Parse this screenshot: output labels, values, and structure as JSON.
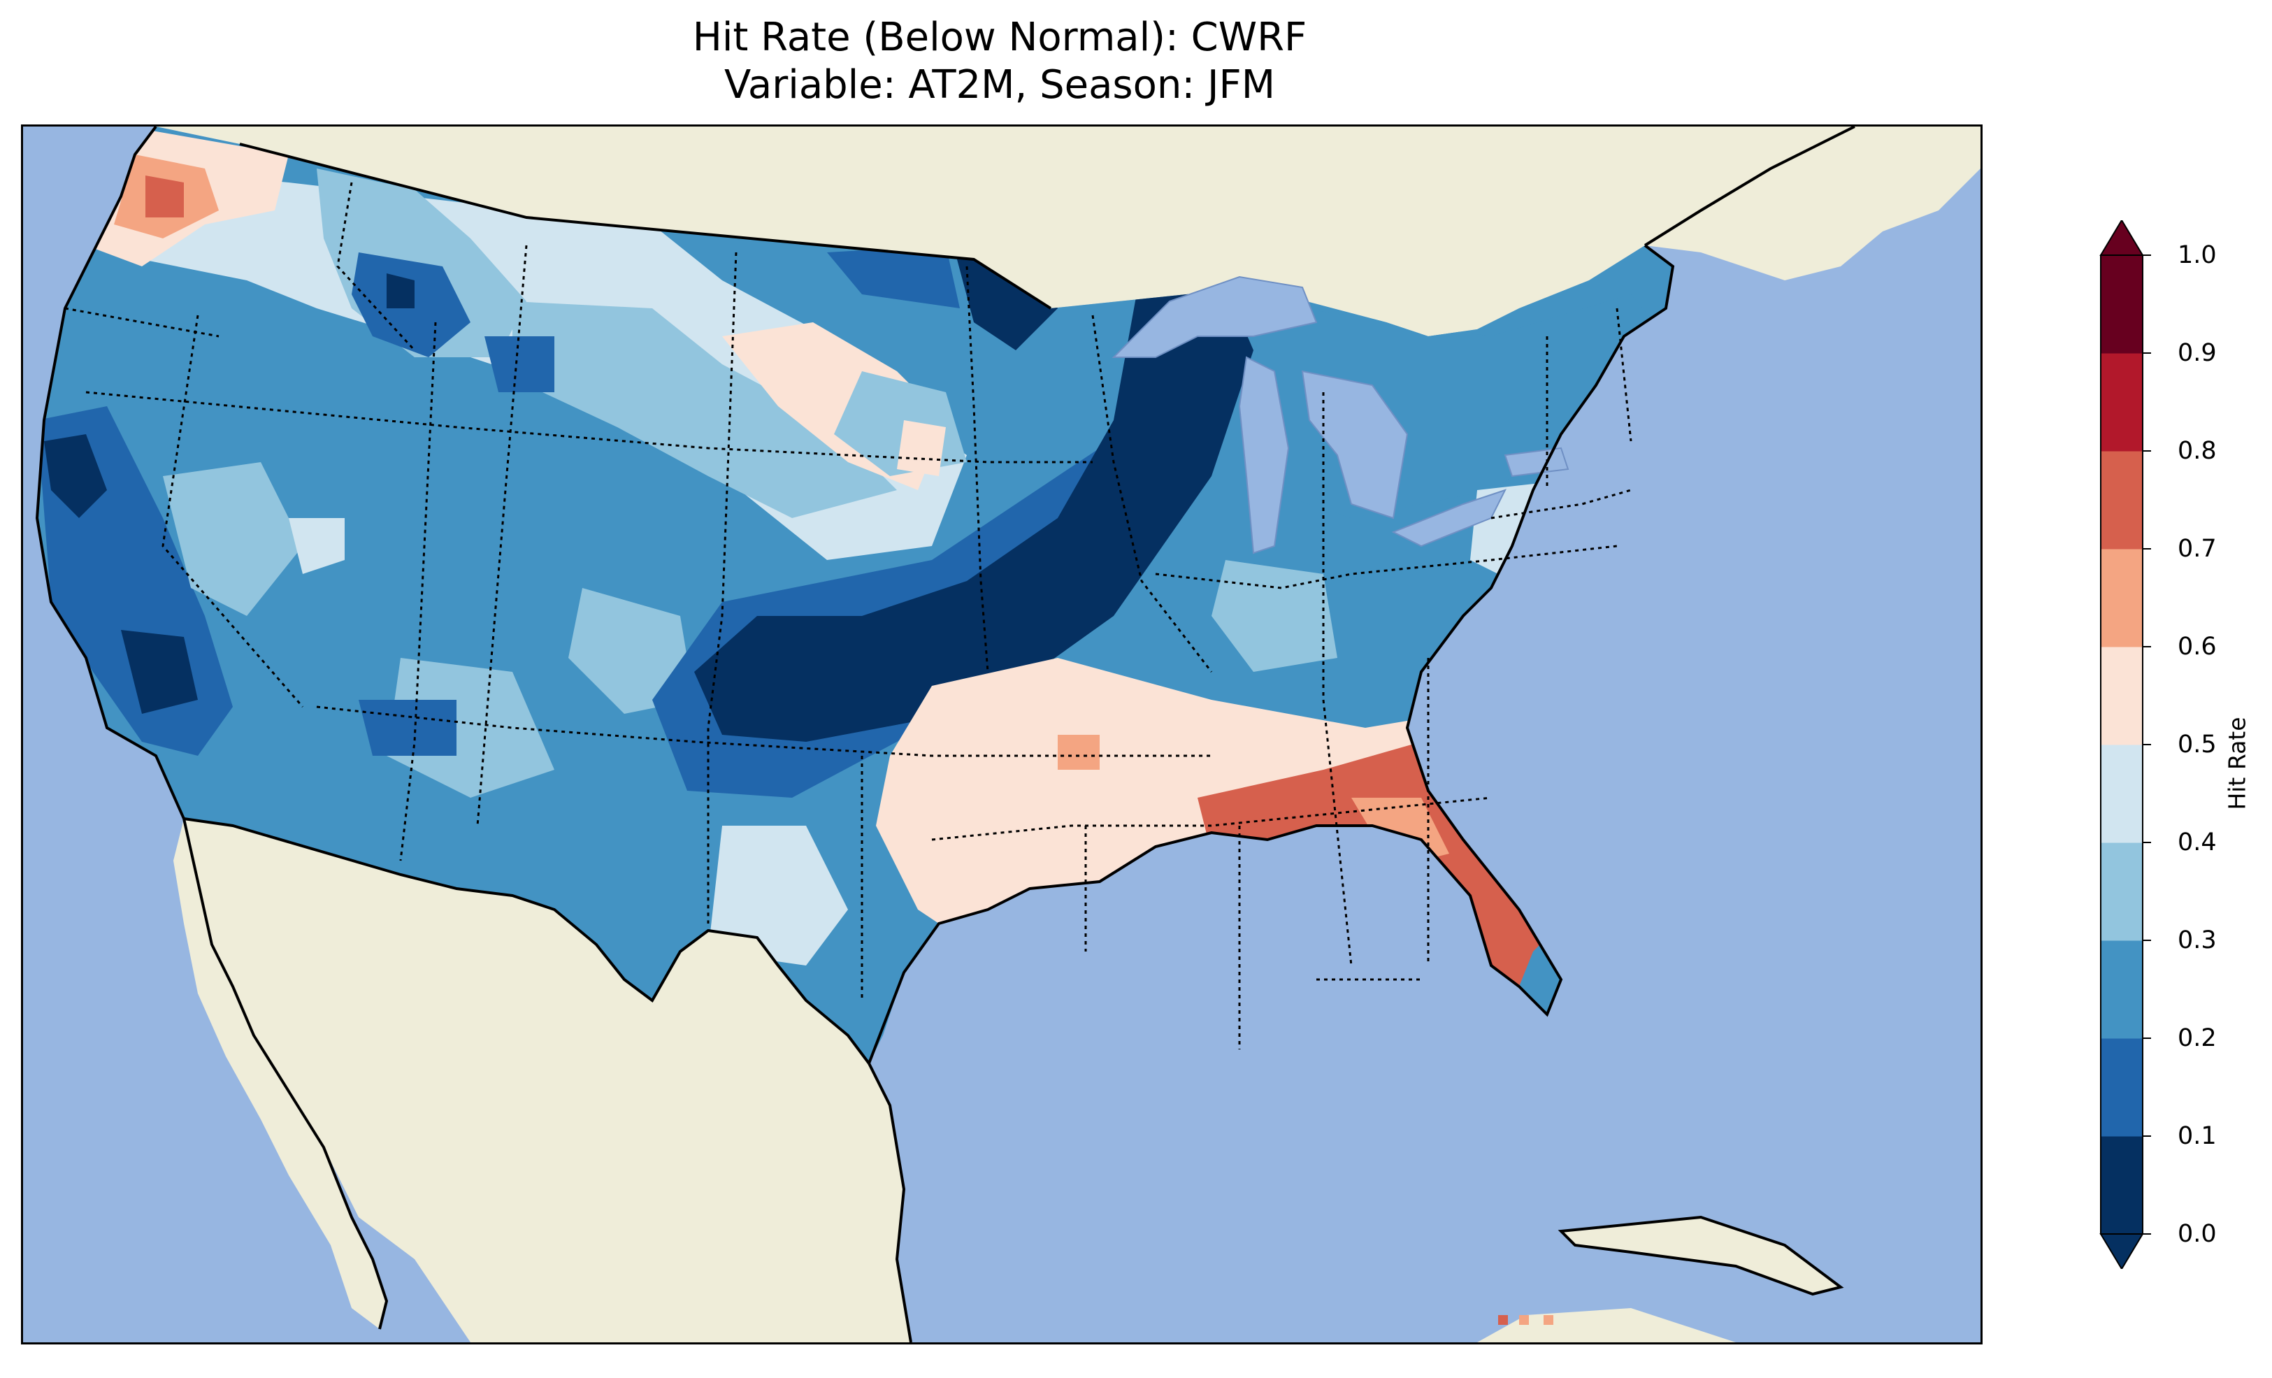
{
  "title": {
    "line1": "Hit Rate (Below Normal): CWRF",
    "line2": "Variable: AT2M, Season: JFM"
  },
  "colors": {
    "ocean": "#97b6e1",
    "land": "#efedd9",
    "lakes": "#97b6e1",
    "border": "#000000"
  },
  "colorbar": {
    "label": "Hit Rate",
    "ticks": [
      "0.0",
      "0.1",
      "0.2",
      "0.3",
      "0.4",
      "0.5",
      "0.6",
      "0.7",
      "0.8",
      "0.9",
      "1.0"
    ],
    "bins": [
      {
        "range": "0.0-0.1",
        "color": "#053061"
      },
      {
        "range": "0.1-0.2",
        "color": "#2166ac"
      },
      {
        "range": "0.2-0.3",
        "color": "#4393c3"
      },
      {
        "range": "0.3-0.4",
        "color": "#92c5de"
      },
      {
        "range": "0.4-0.5",
        "color": "#d1e5f0"
      },
      {
        "range": "0.5-0.6",
        "color": "#fbe3d6"
      },
      {
        "range": "0.6-0.7",
        "color": "#f4a582"
      },
      {
        "range": "0.7-0.8",
        "color": "#d6604d"
      },
      {
        "range": "0.8-0.9",
        "color": "#b2182b"
      },
      {
        "range": "0.9-1.0",
        "color": "#67001f"
      }
    ],
    "extend": "both"
  },
  "regions": [
    {
      "name": "pacific-northwest",
      "value": 0.6
    },
    {
      "name": "california-coast",
      "value": 0.1
    },
    {
      "name": "great-basin",
      "value": 0.25
    },
    {
      "name": "northern-rockies",
      "value": 0.15
    },
    {
      "name": "northern-plains",
      "value": 0.45
    },
    {
      "name": "central-plains-corridor",
      "value": 0.05
    },
    {
      "name": "upper-midwest",
      "value": 0.05
    },
    {
      "name": "ohio-valley",
      "value": 0.25
    },
    {
      "name": "northeast",
      "value": 0.25
    },
    {
      "name": "texas",
      "value": 0.25
    },
    {
      "name": "south-central",
      "value": 0.55
    },
    {
      "name": "carolinas",
      "value": 0.75
    },
    {
      "name": "georgia-north-florida",
      "value": 0.85
    },
    {
      "name": "florida-peninsula",
      "value": 0.65
    }
  ]
}
